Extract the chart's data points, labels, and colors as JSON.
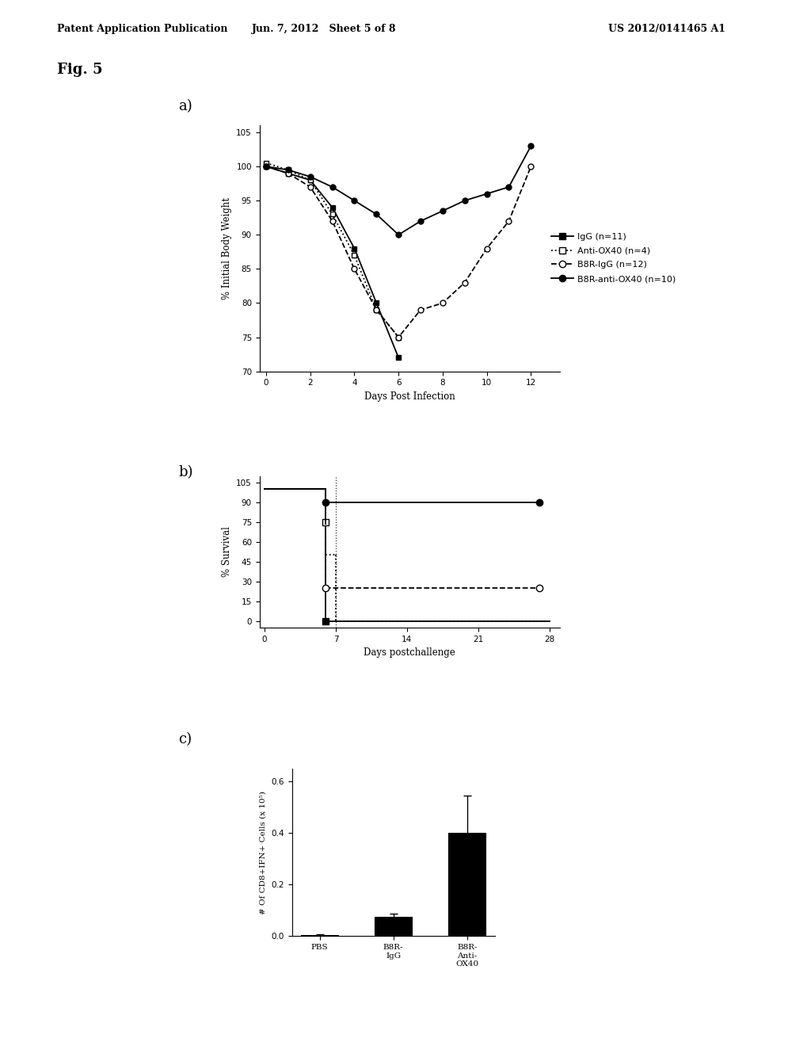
{
  "header_left": "Patent Application Publication",
  "header_center": "Jun. 7, 2012   Sheet 5 of 8",
  "header_right": "US 2012/0141465 A1",
  "fig_label": "Fig. 5",
  "panel_a_label": "a)",
  "panel_b_label": "b)",
  "panel_c_label": "c)",
  "panel_a": {
    "xlabel": "Days Post Infection",
    "ylabel": "% Initial Body Weight",
    "xlim": [
      -0.3,
      13.3
    ],
    "ylim": [
      70,
      106
    ],
    "yticks": [
      70,
      75,
      80,
      85,
      90,
      95,
      100,
      105
    ],
    "xticks": [
      0,
      2,
      4,
      6,
      8,
      10,
      12
    ],
    "series_IgG": {
      "label": "IgG (n=11)",
      "style": "solid",
      "marker": "s",
      "marker_fill": "black",
      "x": [
        0,
        1,
        2,
        3,
        4,
        5,
        6
      ],
      "y": [
        100,
        99,
        98,
        94,
        88,
        80,
        72
      ]
    },
    "series_antiox": {
      "label": "Anti-OX40 (n=4)",
      "style": "dotted",
      "marker": "s",
      "marker_fill": "white",
      "x": [
        0,
        1,
        2,
        3,
        4,
        5,
        6
      ],
      "y": [
        100.5,
        99.5,
        98,
        93,
        87,
        79,
        75
      ]
    },
    "series_b8r_igg": {
      "label": "B8R-IgG (n=12)",
      "style": "dashed",
      "marker": "o",
      "marker_fill": "white",
      "x": [
        0,
        1,
        2,
        3,
        4,
        5,
        6,
        7,
        8,
        9,
        10,
        11,
        12
      ],
      "y": [
        100,
        99,
        97,
        92,
        85,
        79,
        75,
        79,
        80,
        83,
        88,
        92,
        100
      ]
    },
    "series_b8r_antiox": {
      "label": "B8R-anti-OX40 (n=10)",
      "style": "solid",
      "marker": "o",
      "marker_fill": "black",
      "x": [
        0,
        1,
        2,
        3,
        4,
        5,
        6,
        7,
        8,
        9,
        10,
        11,
        12
      ],
      "y": [
        100,
        99.5,
        98.5,
        97,
        95,
        93,
        90,
        92,
        93.5,
        95,
        96,
        97,
        103
      ]
    }
  },
  "panel_b": {
    "xlabel": "Days postchallenge",
    "ylabel": "% Survival",
    "xlim": [
      -0.5,
      29
    ],
    "ylim": [
      -5,
      110
    ],
    "yticks": [
      0,
      15,
      30,
      45,
      60,
      75,
      90,
      105
    ],
    "xticks": [
      0,
      7,
      14,
      21,
      28
    ]
  },
  "panel_c": {
    "xlabel_labels": [
      "PBS",
      "B8R-\nIgG",
      "B8R-\nAnti-\nOX40"
    ],
    "ylabel": "# Of CD8+IFN+ Cells (x 10⁵)",
    "ylim": [
      0,
      0.65
    ],
    "yticks": [
      0,
      0.2,
      0.4,
      0.6
    ],
    "bar_values": [
      0.004,
      0.075,
      0.4
    ],
    "bar_errors": [
      0.002,
      0.012,
      0.145
    ],
    "bar_color": "black"
  },
  "legend_entries": [
    {
      "label": "IgG (n=11)",
      "style": "solid",
      "marker": "s",
      "marker_fill": "black"
    },
    {
      "label": "Anti-OX40 (n=4)",
      "style": "dotted",
      "marker": "s",
      "marker_fill": "white"
    },
    {
      "label": "B8R-IgG (n=12)",
      "style": "dashed",
      "marker": "o",
      "marker_fill": "white"
    },
    {
      "label": "B8R-anti-OX40 (n=10)",
      "style": "solid",
      "marker": "o",
      "marker_fill": "black"
    }
  ]
}
